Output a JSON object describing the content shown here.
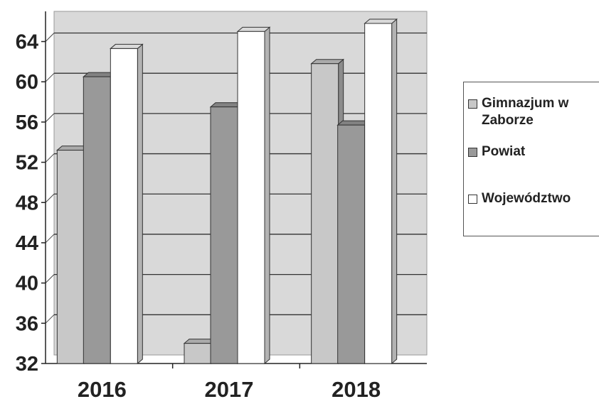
{
  "chart_data": {
    "type": "bar",
    "categories": [
      "2016",
      "2017",
      "2018"
    ],
    "series": [
      {
        "name": "Gimnazjum w Zaborze",
        "values": [
          53.2,
          34.0,
          61.8
        ],
        "color": "#c8c8c8"
      },
      {
        "name": "Powiat",
        "values": [
          60.5,
          57.5,
          55.7
        ],
        "color": "#999999"
      },
      {
        "name": "Województwo",
        "values": [
          63.3,
          65.0,
          65.8
        ],
        "color": "#ffffff"
      }
    ],
    "y_ticks": [
      "32",
      "36",
      "40",
      "44",
      "48",
      "52",
      "56",
      "60",
      "64"
    ],
    "ylim": [
      32,
      67
    ],
    "grid": true,
    "legend_position": "right",
    "plot_background": "#d9d9d9"
  }
}
